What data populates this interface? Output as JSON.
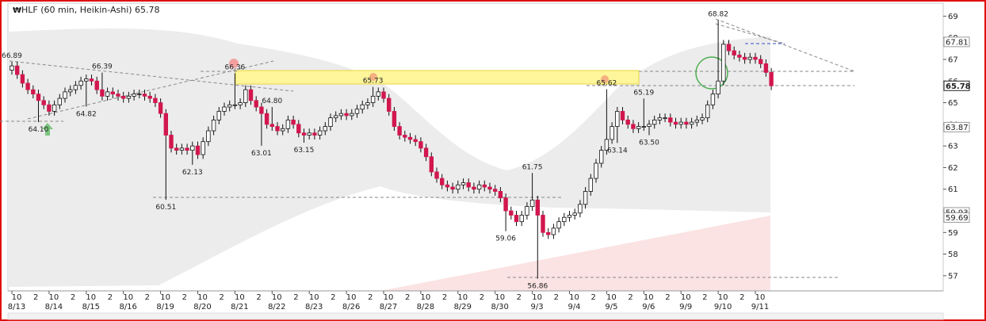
{
  "chart_data": {
    "type": "candlestick",
    "title": "HLF (60 min, Heikin-Ashi) 65.78",
    "colors": {
      "up": "#ffffff",
      "down": "#d2164e",
      "outline": "#111111"
    },
    "ylim": [
      56.3,
      69.6
    ],
    "yticks": [
      57,
      58,
      59,
      60,
      61,
      62,
      63,
      64,
      65,
      66,
      67,
      68,
      69
    ],
    "categories": [
      "8/13",
      "8/14",
      "8/15",
      "8/16",
      "8/19",
      "8/20",
      "8/21",
      "8/22",
      "8/23",
      "8/26",
      "8/27",
      "8/28",
      "8/29",
      "8/30",
      "9/3",
      "9/4",
      "9/5",
      "9/6",
      "9/9",
      "9/10",
      "9/11"
    ],
    "session_labels": [
      "10",
      "2"
    ],
    "open": [
      66.5,
      66.7,
      66.3,
      65.9,
      65.6,
      65.4,
      65.1,
      64.9,
      64.6,
      64.9,
      65.2,
      65.5,
      65.6,
      65.8,
      66.0,
      66.1,
      66.0,
      65.6,
      65.3,
      65.5,
      65.4,
      65.3,
      65.2,
      65.3,
      65.4,
      65.4,
      65.3,
      65.2,
      65.0,
      64.5,
      63.5,
      62.9,
      62.8,
      62.9,
      62.8,
      63.0,
      62.6,
      63.2,
      63.7,
      64.2,
      64.6,
      64.8,
      64.9,
      64.9,
      65.0,
      65.6,
      65.1,
      64.8,
      64.5,
      64.0,
      63.9,
      63.7,
      63.8,
      64.2,
      64.0,
      63.6,
      63.5,
      63.6,
      63.5,
      63.7,
      63.9,
      64.3,
      64.4,
      64.5,
      64.4,
      64.5,
      64.7,
      64.9,
      65.0,
      65.3,
      65.5,
      65.2,
      64.6,
      63.9,
      63.5,
      63.4,
      63.3,
      63.2,
      62.9,
      62.5,
      61.8,
      61.5,
      61.2,
      61.1,
      61.0,
      61.2,
      61.3,
      61.1,
      61.0,
      61.2,
      61.1,
      61.0,
      60.9,
      60.6,
      60.0,
      59.8,
      59.5,
      59.8,
      60.2,
      60.5,
      59.8,
      59.0,
      58.9,
      59.2,
      59.5,
      59.7,
      59.8,
      59.9,
      60.3,
      60.9,
      61.5,
      62.2,
      62.8,
      63.3,
      63.9,
      64.6,
      64.2,
      64.0,
      63.8,
      63.9,
      63.9,
      64.0,
      64.2,
      64.3,
      64.3,
      64.1,
      64.0,
      64.1,
      64.0,
      64.1,
      64.2,
      64.3,
      64.9,
      65.4,
      66.0,
      67.7,
      67.4,
      67.2,
      67.1,
      67.0,
      67.1,
      67.0,
      66.8,
      66.4
    ],
    "high": [
      66.89,
      66.9,
      66.5,
      66.1,
      65.8,
      65.6,
      65.3,
      65.1,
      65.1,
      65.4,
      65.7,
      65.8,
      66.0,
      66.2,
      66.3,
      66.3,
      66.2,
      66.39,
      65.7,
      65.7,
      65.6,
      65.5,
      65.5,
      65.6,
      65.6,
      65.6,
      65.5,
      65.4,
      65.2,
      64.7,
      63.7,
      63.1,
      63.1,
      63.1,
      63.2,
      63.2,
      63.4,
      63.9,
      64.4,
      64.8,
      65.0,
      65.1,
      66.36,
      65.2,
      65.8,
      65.8,
      65.3,
      65.0,
      64.7,
      64.8,
      64.1,
      64.0,
      64.4,
      64.4,
      64.2,
      63.8,
      63.8,
      63.8,
      63.9,
      64.1,
      64.5,
      64.6,
      64.7,
      64.7,
      64.7,
      64.9,
      65.1,
      65.2,
      65.73,
      65.7,
      65.7,
      65.4,
      64.8,
      64.1,
      63.7,
      63.6,
      63.5,
      63.4,
      63.1,
      62.7,
      62.0,
      61.7,
      61.4,
      61.3,
      61.4,
      61.5,
      61.5,
      61.3,
      61.4,
      61.4,
      61.3,
      61.2,
      61.1,
      60.8,
      60.2,
      60.0,
      60.0,
      60.4,
      61.75,
      60.7,
      60.0,
      59.2,
      59.4,
      59.7,
      59.9,
      60.0,
      60.1,
      60.5,
      61.1,
      61.7,
      62.4,
      63.0,
      65.62,
      64.1,
      64.8,
      64.8,
      64.4,
      64.2,
      64.1,
      65.19,
      64.2,
      64.4,
      64.5,
      64.5,
      64.5,
      64.3,
      64.3,
      64.3,
      64.3,
      64.4,
      64.5,
      65.1,
      65.6,
      68.82,
      67.9,
      67.9,
      67.6,
      67.4,
      67.3,
      67.3,
      67.3,
      67.2,
      67.0,
      66.6
    ],
    "low": [
      66.3,
      66.1,
      65.7,
      65.4,
      65.2,
      64.1,
      64.7,
      64.4,
      64.4,
      64.7,
      65.0,
      65.3,
      65.4,
      65.6,
      64.82,
      65.8,
      65.4,
      65.1,
      65.1,
      65.2,
      65.1,
      65.0,
      65.0,
      65.1,
      65.2,
      65.1,
      65.0,
      64.8,
      64.3,
      60.51,
      62.7,
      62.6,
      62.6,
      62.6,
      62.13,
      62.4,
      62.4,
      63.0,
      63.5,
      64.0,
      64.4,
      64.6,
      64.7,
      64.7,
      64.8,
      64.9,
      64.6,
      63.01,
      63.8,
      63.7,
      63.5,
      63.5,
      63.6,
      63.8,
      63.4,
      63.15,
      63.3,
      63.3,
      63.3,
      63.5,
      63.7,
      64.1,
      64.2,
      64.2,
      64.2,
      64.3,
      64.5,
      64.7,
      64.8,
      65.1,
      65.0,
      64.4,
      63.7,
      63.3,
      63.2,
      63.1,
      63.0,
      62.7,
      62.3,
      61.6,
      61.3,
      61.0,
      60.9,
      60.8,
      60.8,
      61.0,
      60.9,
      60.8,
      60.8,
      60.9,
      60.8,
      60.7,
      60.4,
      59.06,
      59.6,
      59.3,
      59.3,
      59.6,
      60.0,
      56.86,
      58.8,
      58.7,
      58.7,
      59.0,
      59.3,
      59.5,
      59.6,
      59.7,
      60.1,
      60.7,
      61.3,
      62.0,
      62.6,
      63.1,
      63.14,
      64.0,
      63.8,
      63.6,
      63.6,
      63.7,
      63.5,
      63.8,
      64.0,
      64.1,
      63.9,
      63.8,
      63.8,
      63.8,
      63.8,
      63.9,
      64.0,
      64.1,
      64.7,
      65.2,
      65.8,
      67.2,
      67.0,
      66.9,
      66.8,
      66.8,
      66.8,
      66.6,
      66.2,
      65.58
    ],
    "close": [
      66.7,
      66.3,
      65.9,
      65.6,
      65.4,
      65.1,
      64.9,
      64.6,
      64.9,
      65.2,
      65.5,
      65.6,
      65.8,
      66.0,
      66.1,
      66.0,
      65.6,
      65.3,
      65.5,
      65.4,
      65.3,
      65.2,
      65.3,
      65.4,
      65.4,
      65.3,
      65.2,
      65.0,
      64.5,
      63.5,
      62.9,
      62.8,
      62.9,
      62.8,
      63.0,
      62.6,
      63.2,
      63.7,
      64.2,
      64.6,
      64.8,
      64.9,
      64.9,
      65.0,
      65.6,
      65.1,
      64.8,
      64.5,
      64.0,
      63.9,
      63.7,
      63.8,
      64.2,
      64.0,
      63.6,
      63.5,
      63.6,
      63.5,
      63.7,
      63.9,
      64.3,
      64.4,
      64.5,
      64.4,
      64.5,
      64.7,
      64.9,
      65.0,
      65.3,
      65.5,
      65.2,
      64.6,
      63.9,
      63.5,
      63.4,
      63.3,
      63.2,
      62.9,
      62.5,
      61.8,
      61.5,
      61.2,
      61.1,
      61.0,
      61.2,
      61.3,
      61.1,
      61.0,
      61.2,
      61.1,
      61.0,
      60.9,
      60.6,
      60.0,
      59.8,
      59.5,
      59.8,
      60.2,
      60.5,
      59.8,
      59.0,
      58.9,
      59.2,
      59.5,
      59.7,
      59.8,
      59.9,
      60.3,
      60.9,
      61.5,
      62.2,
      62.8,
      63.3,
      63.9,
      64.6,
      64.2,
      64.0,
      63.8,
      63.9,
      63.9,
      64.0,
      64.2,
      64.3,
      64.3,
      64.1,
      64.0,
      64.1,
      64.0,
      64.1,
      64.2,
      64.3,
      64.9,
      65.4,
      66.0,
      67.7,
      67.4,
      67.2,
      67.1,
      67.0,
      67.1,
      67.0,
      66.8,
      66.4,
      65.78
    ],
    "annotations": [
      66.89,
      66.39,
      66.36,
      64.82,
      {
        "value": 64.1,
        "label": "64.10"
      },
      {
        "value": 64.8,
        "label": "64.80"
      },
      63.01,
      63.15,
      62.13,
      60.51,
      65.73,
      65.62,
      65.19,
      61.75,
      59.06,
      56.86,
      63.14,
      {
        "value": 63.5,
        "label": "63.50"
      },
      68.82
    ],
    "price_markers": [
      67.81,
      65.78,
      63.87,
      59.93,
      59.69
    ]
  }
}
